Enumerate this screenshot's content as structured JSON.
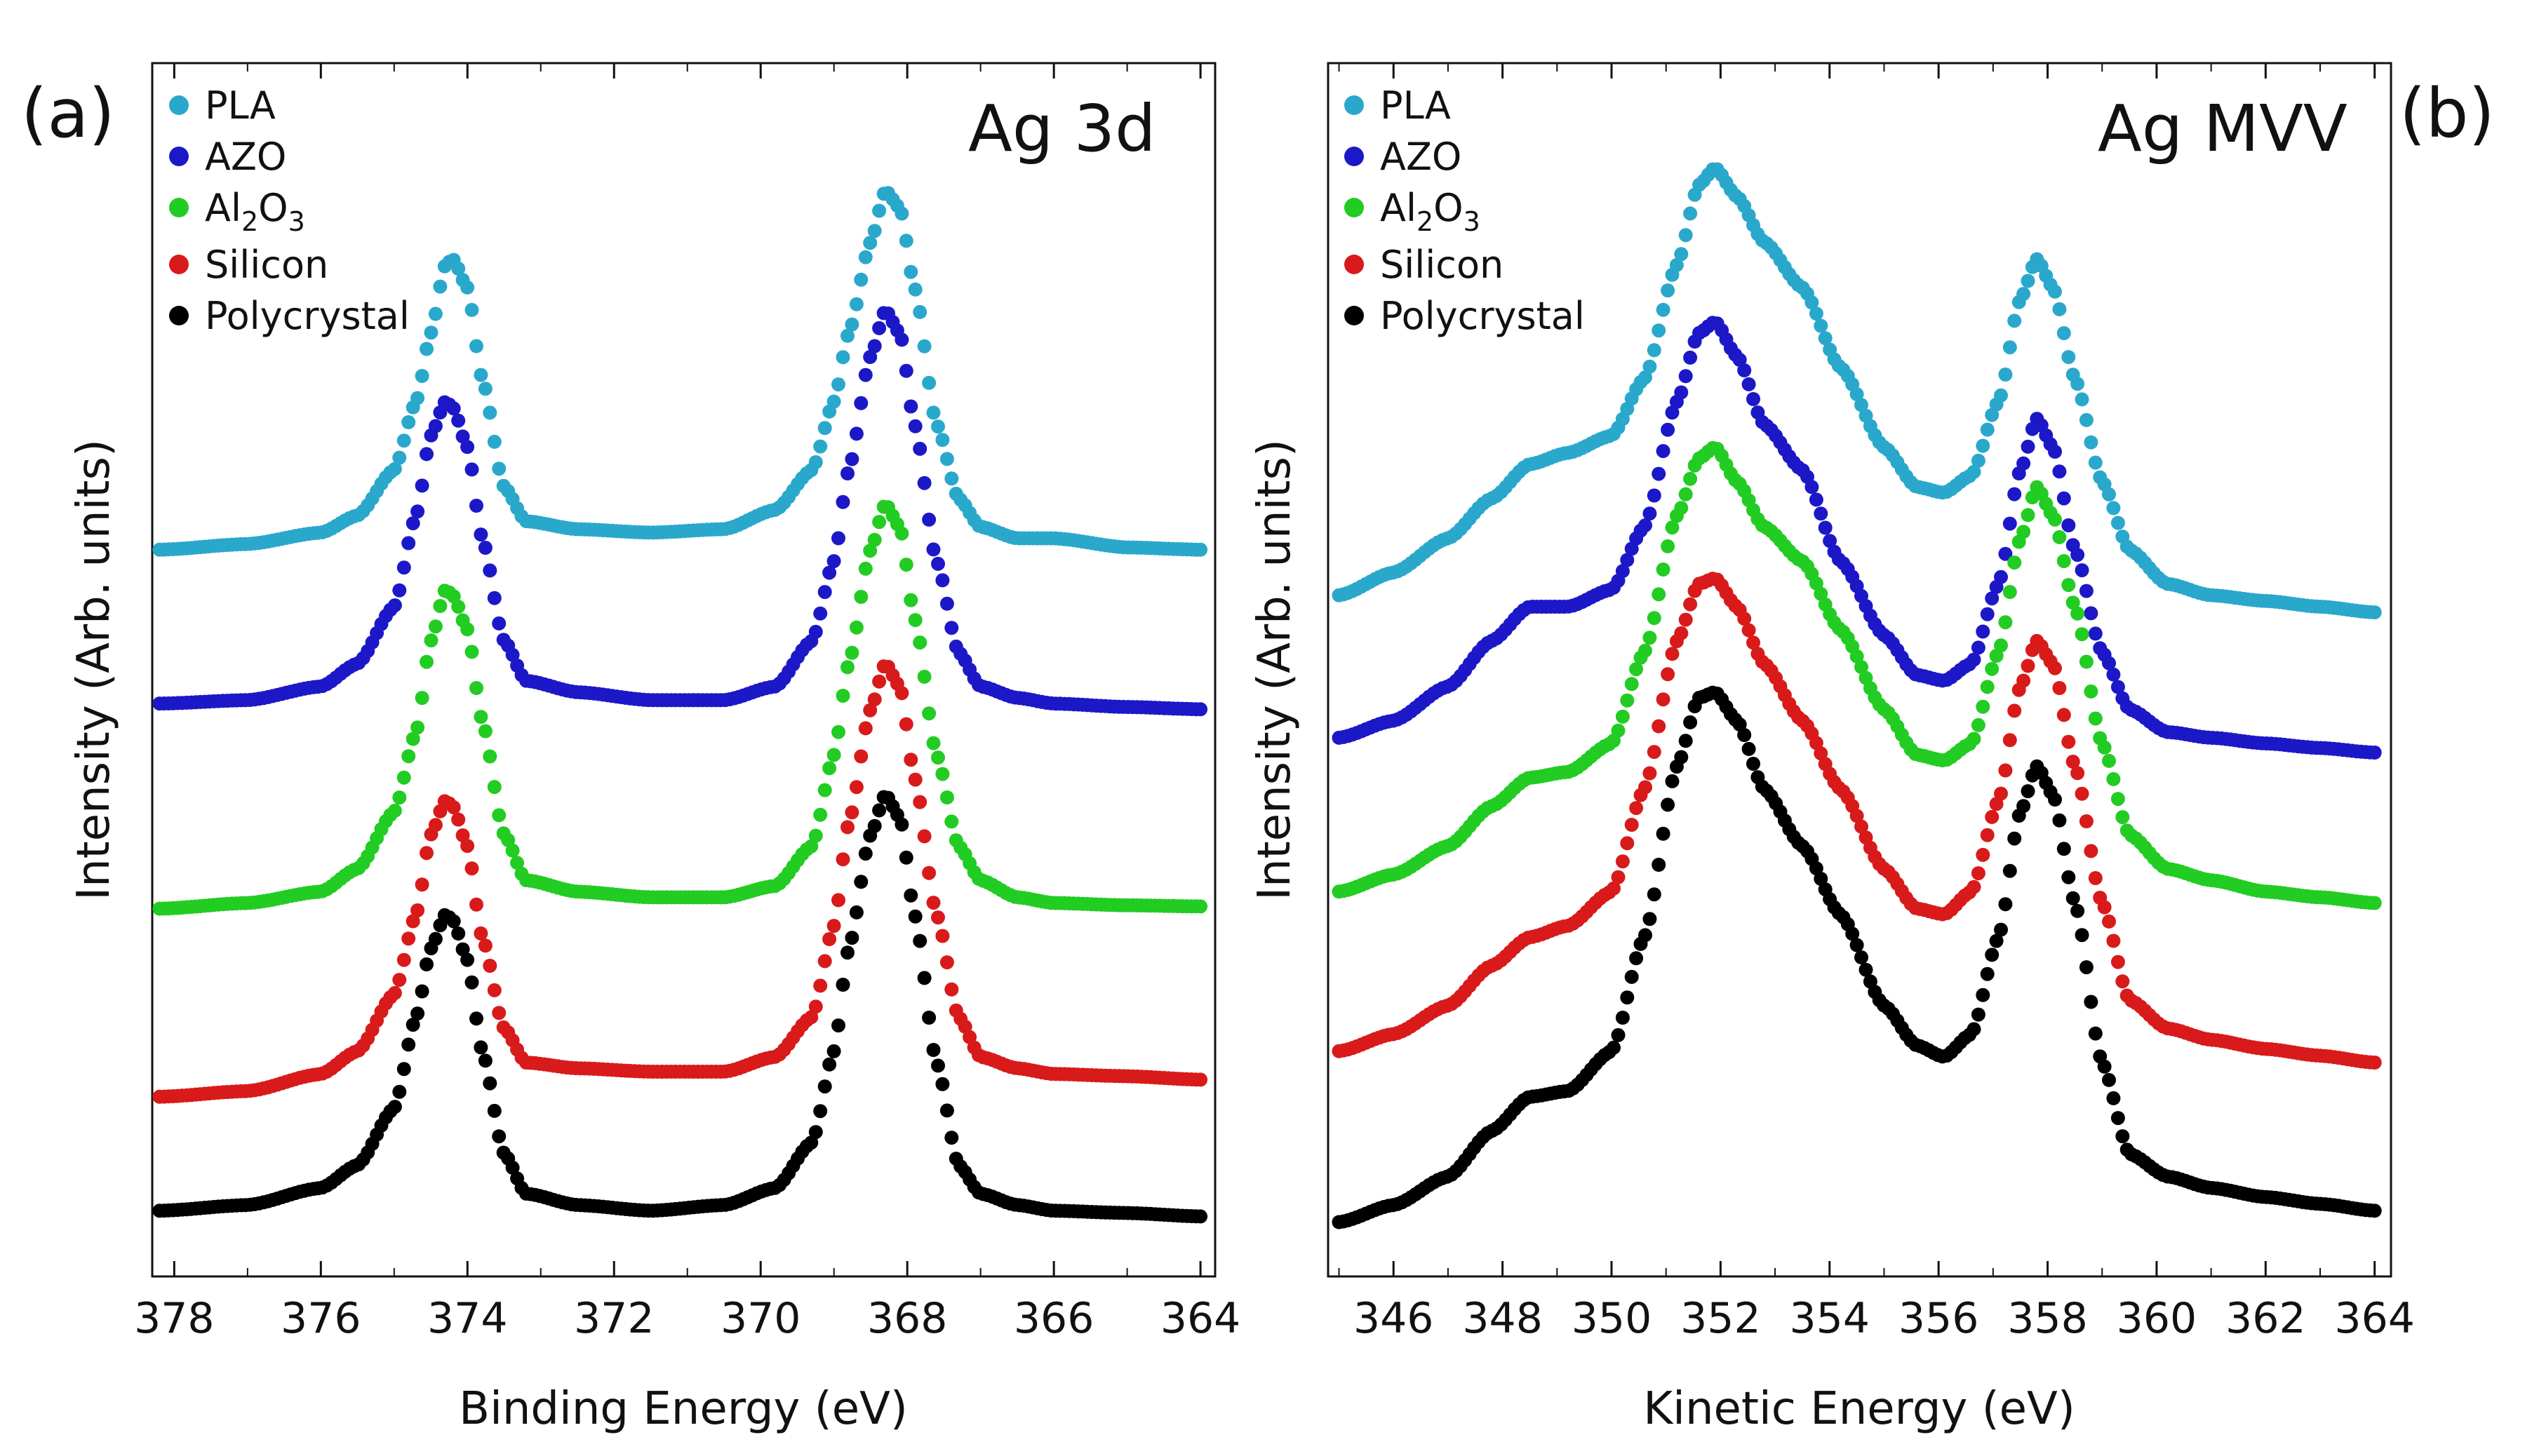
{
  "chart_data": [
    {
      "type": "scatter",
      "panel_label": "(a)",
      "title": "Ag 3d",
      "xlabel": "Binding Energy  (eV)",
      "ylabel": "Intensity (Arb. units)",
      "xlim": [
        378.3,
        363.8
      ],
      "x_reversed": true,
      "yticks_shown": false,
      "xticks": [
        "378",
        "376",
        "374",
        "372",
        "370",
        "368",
        "366",
        "364"
      ],
      "legend": [
        {
          "name": "PLA",
          "color": "#2aa8cc"
        },
        {
          "name": "AZO",
          "color": "#1c18c8"
        },
        {
          "name": "Al",
          "sub": "2",
          "name2": "O",
          "sub2": "3",
          "color": "#22cc22"
        },
        {
          "name": "Silicon",
          "color": "#d91a1a"
        },
        {
          "name": "Polycrystal",
          "color": "#000000"
        }
      ],
      "series": [
        {
          "name": "PLA",
          "color": "#2aa8cc",
          "x": [
            378.2,
            377,
            376,
            375.5,
            375,
            374.7,
            374.5,
            374.3,
            374.2,
            374,
            373.8,
            373.5,
            373.2,
            372.5,
            371.5,
            370.5,
            369.8,
            369.3,
            369,
            368.8,
            368.5,
            368.3,
            368.1,
            367.9,
            367.6,
            367.3,
            367,
            366.5,
            366,
            365,
            364
          ],
          "y": [
            0.61,
            0.615,
            0.625,
            0.64,
            0.68,
            0.74,
            0.8,
            0.86,
            0.865,
            0.84,
            0.76,
            0.665,
            0.635,
            0.628,
            0.625,
            0.628,
            0.645,
            0.68,
            0.74,
            0.8,
            0.88,
            0.925,
            0.91,
            0.84,
            0.72,
            0.655,
            0.63,
            0.62,
            0.62,
            0.612,
            0.61
          ]
        },
        {
          "name": "AZO",
          "color": "#1c18c8",
          "x": [
            378.2,
            377,
            376,
            375.5,
            375,
            374.7,
            374.5,
            374.3,
            374.2,
            374,
            373.8,
            373.5,
            373.2,
            372.5,
            371.5,
            370.5,
            369.8,
            369.3,
            369,
            368.8,
            368.5,
            368.3,
            368.1,
            367.9,
            367.6,
            367.3,
            367,
            366.5,
            366,
            365,
            364
          ],
          "y": [
            0.475,
            0.478,
            0.49,
            0.51,
            0.56,
            0.64,
            0.71,
            0.74,
            0.735,
            0.7,
            0.62,
            0.53,
            0.495,
            0.485,
            0.478,
            0.478,
            0.49,
            0.53,
            0.6,
            0.68,
            0.78,
            0.82,
            0.8,
            0.72,
            0.6,
            0.52,
            0.49,
            0.48,
            0.475,
            0.472,
            0.47
          ]
        },
        {
          "name": "Al2O3",
          "color": "#22cc22",
          "x": [
            378.2,
            377,
            376,
            375.5,
            375,
            374.7,
            374.5,
            374.3,
            374.2,
            374,
            373.8,
            373.5,
            373.2,
            372.5,
            371.5,
            370.5,
            369.8,
            369.3,
            369,
            368.8,
            368.5,
            368.3,
            368.1,
            367.9,
            367.6,
            367.3,
            367,
            366.5,
            366,
            365,
            364
          ],
          "y": [
            0.295,
            0.3,
            0.31,
            0.33,
            0.38,
            0.45,
            0.53,
            0.575,
            0.57,
            0.54,
            0.46,
            0.36,
            0.32,
            0.31,
            0.305,
            0.305,
            0.315,
            0.35,
            0.43,
            0.51,
            0.61,
            0.65,
            0.63,
            0.55,
            0.43,
            0.35,
            0.32,
            0.305,
            0.3,
            0.298,
            0.297
          ]
        },
        {
          "name": "Silicon",
          "color": "#d91a1a",
          "x": [
            378.2,
            377,
            376,
            375.5,
            375,
            374.7,
            374.5,
            374.3,
            374.2,
            374,
            373.8,
            373.5,
            373.2,
            372.5,
            371.5,
            370.5,
            369.8,
            369.3,
            369,
            368.8,
            368.5,
            368.3,
            368.1,
            367.9,
            367.6,
            367.3,
            367,
            366.5,
            366,
            365,
            364
          ],
          "y": [
            0.13,
            0.135,
            0.15,
            0.17,
            0.22,
            0.29,
            0.36,
            0.39,
            0.385,
            0.35,
            0.27,
            0.19,
            0.16,
            0.155,
            0.152,
            0.152,
            0.165,
            0.2,
            0.28,
            0.37,
            0.47,
            0.51,
            0.49,
            0.41,
            0.29,
            0.2,
            0.165,
            0.155,
            0.15,
            0.148,
            0.145
          ]
        },
        {
          "name": "Polycrystal",
          "color": "#000000",
          "x": [
            378.2,
            377,
            376,
            375.5,
            375,
            374.7,
            374.5,
            374.3,
            374.2,
            374,
            373.8,
            373.5,
            373.2,
            372.5,
            371.5,
            370.5,
            369.8,
            369.3,
            369,
            368.8,
            368.5,
            368.3,
            368.1,
            367.9,
            367.6,
            367.3,
            367,
            366.5,
            366,
            365,
            364
          ],
          "y": [
            0.03,
            0.035,
            0.05,
            0.07,
            0.12,
            0.2,
            0.26,
            0.29,
            0.285,
            0.25,
            0.17,
            0.08,
            0.045,
            0.035,
            0.03,
            0.035,
            0.05,
            0.09,
            0.17,
            0.26,
            0.36,
            0.395,
            0.375,
            0.29,
            0.16,
            0.07,
            0.045,
            0.035,
            0.03,
            0.028,
            0.025
          ]
        }
      ]
    },
    {
      "type": "scatter",
      "panel_label": "(b)",
      "title": "Ag MVV",
      "xlabel": "Kinetic Energy  (eV)",
      "ylabel": "Intensity (Arb. units)",
      "xlim": [
        344.8,
        364.3
      ],
      "x_reversed": false,
      "yticks_shown": false,
      "xticks": [
        "346",
        "348",
        "350",
        "352",
        "354",
        "356",
        "358",
        "360",
        "362",
        "364"
      ],
      "legend": [
        {
          "name": "PLA",
          "color": "#2aa8cc"
        },
        {
          "name": "AZO",
          "color": "#1c18c8"
        },
        {
          "name": "Al",
          "sub": "2",
          "name2": "O",
          "sub2": "3",
          "color": "#22cc22"
        },
        {
          "name": "Silicon",
          "color": "#d91a1a"
        },
        {
          "name": "Polycrystal",
          "color": "#000000"
        }
      ],
      "series": [
        {
          "name": "PLA",
          "color": "#2aa8cc",
          "x": [
            345,
            346,
            347,
            347.8,
            348.5,
            349.2,
            350,
            350.6,
            351.2,
            351.6,
            351.9,
            352.3,
            352.8,
            353.5,
            354.2,
            355,
            355.6,
            356.1,
            356.6,
            357.1,
            357.5,
            357.8,
            358.1,
            358.5,
            359,
            359.5,
            360.2,
            361,
            362,
            363,
            364
          ],
          "y": [
            0.57,
            0.59,
            0.62,
            0.655,
            0.685,
            0.695,
            0.71,
            0.76,
            0.86,
            0.93,
            0.945,
            0.92,
            0.88,
            0.84,
            0.77,
            0.7,
            0.665,
            0.66,
            0.675,
            0.74,
            0.83,
            0.865,
            0.84,
            0.76,
            0.67,
            0.61,
            0.58,
            0.57,
            0.565,
            0.56,
            0.555
          ]
        },
        {
          "name": "AZO",
          "color": "#1c18c8",
          "x": [
            345,
            346,
            347,
            347.8,
            348.5,
            349.2,
            350,
            350.6,
            351.2,
            351.6,
            351.9,
            352.3,
            352.8,
            353.5,
            354.2,
            355,
            355.6,
            356.1,
            356.6,
            357.1,
            357.5,
            357.8,
            358.1,
            358.5,
            359,
            359.5,
            360.2,
            361,
            362,
            363,
            364
          ],
          "y": [
            0.445,
            0.46,
            0.49,
            0.53,
            0.56,
            0.56,
            0.575,
            0.63,
            0.74,
            0.8,
            0.81,
            0.78,
            0.72,
            0.68,
            0.6,
            0.535,
            0.5,
            0.495,
            0.51,
            0.58,
            0.68,
            0.725,
            0.7,
            0.61,
            0.52,
            0.47,
            0.45,
            0.445,
            0.44,
            0.436,
            0.432
          ]
        },
        {
          "name": "Al2O3",
          "color": "#22cc22",
          "x": [
            345,
            346,
            347,
            347.8,
            348.5,
            349.2,
            350,
            350.6,
            351.2,
            351.6,
            351.9,
            352.3,
            352.8,
            353.5,
            354.2,
            355,
            355.6,
            356.1,
            356.6,
            357.1,
            357.5,
            357.8,
            358.1,
            358.5,
            359,
            359.5,
            360.2,
            361,
            362,
            363,
            364
          ],
          "y": [
            0.31,
            0.325,
            0.35,
            0.385,
            0.41,
            0.415,
            0.44,
            0.52,
            0.64,
            0.69,
            0.7,
            0.67,
            0.63,
            0.6,
            0.54,
            0.47,
            0.43,
            0.425,
            0.44,
            0.52,
            0.62,
            0.665,
            0.64,
            0.56,
            0.44,
            0.36,
            0.33,
            0.32,
            0.31,
            0.305,
            0.3
          ]
        },
        {
          "name": "Silicon",
          "color": "#d91a1a",
          "x": [
            345,
            346,
            347,
            347.8,
            348.5,
            349.2,
            350,
            350.6,
            351.2,
            351.6,
            351.9,
            352.3,
            352.8,
            353.5,
            354.2,
            355,
            355.6,
            356.1,
            356.6,
            357.1,
            357.5,
            357.8,
            358.1,
            358.5,
            359,
            359.5,
            360.2,
            361,
            362,
            363,
            364
          ],
          "y": [
            0.17,
            0.185,
            0.21,
            0.245,
            0.27,
            0.28,
            0.31,
            0.4,
            0.53,
            0.58,
            0.585,
            0.56,
            0.51,
            0.46,
            0.4,
            0.33,
            0.295,
            0.29,
            0.31,
            0.39,
            0.49,
            0.53,
            0.51,
            0.42,
            0.3,
            0.215,
            0.19,
            0.18,
            0.172,
            0.166,
            0.16
          ]
        },
        {
          "name": "Polycrystal",
          "color": "#000000",
          "x": [
            345,
            346,
            347,
            347.8,
            348.5,
            349.2,
            350,
            350.6,
            351.2,
            351.6,
            351.9,
            352.3,
            352.8,
            353.5,
            354.2,
            355,
            355.6,
            356.1,
            356.6,
            357.1,
            357.5,
            357.8,
            358.1,
            358.5,
            359,
            359.5,
            360.2,
            361,
            362,
            363,
            364
          ],
          "y": [
            0.02,
            0.035,
            0.06,
            0.1,
            0.13,
            0.135,
            0.17,
            0.27,
            0.42,
            0.48,
            0.485,
            0.46,
            0.4,
            0.35,
            0.29,
            0.21,
            0.175,
            0.165,
            0.185,
            0.27,
            0.38,
            0.42,
            0.395,
            0.3,
            0.16,
            0.08,
            0.06,
            0.05,
            0.042,
            0.036,
            0.03
          ]
        }
      ]
    }
  ]
}
